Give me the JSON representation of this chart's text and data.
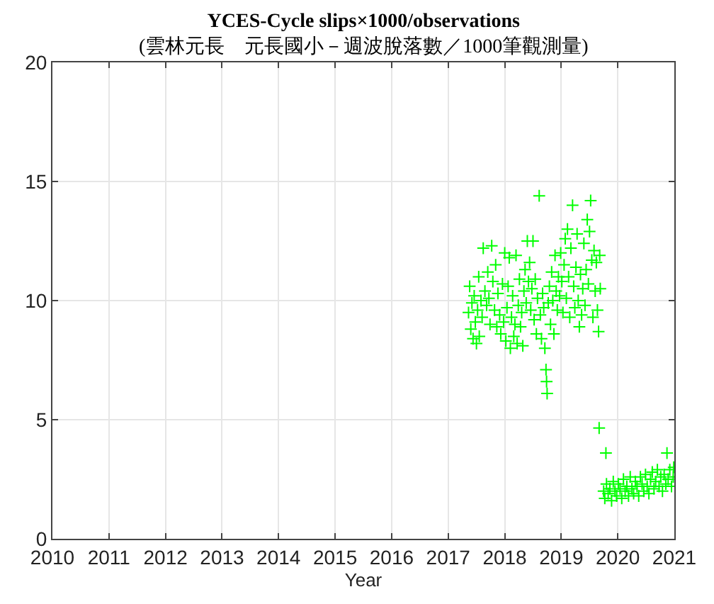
{
  "chart_data": {
    "type": "scatter",
    "title": "YCES-Cycle slips×1000/observations",
    "subtitle": "(雲林元長　元長國小－週波脫落數／1000筆觀測量)",
    "xlabel": "Year",
    "xlim": [
      2010,
      2021
    ],
    "xticks": [
      2010,
      2011,
      2012,
      2013,
      2014,
      2015,
      2016,
      2017,
      2018,
      2019,
      2020,
      2021
    ],
    "ylim": [
      0,
      20
    ],
    "yticks": [
      0,
      5,
      10,
      15,
      20
    ],
    "grid": true,
    "marker": "cross",
    "series": [
      {
        "color": "#00ff00",
        "x": [
          2017.36,
          2017.38,
          2017.4,
          2017.42,
          2017.44,
          2017.46,
          2017.48,
          2017.5,
          2017.52,
          2017.54,
          2017.55,
          2017.58,
          2017.6,
          2017.62,
          2017.65,
          2017.68,
          2017.7,
          2017.72,
          2017.74,
          2017.77,
          2017.79,
          2017.82,
          2017.84,
          2017.86,
          2017.88,
          2017.91,
          2017.93,
          2017.96,
          2017.98,
          2018.0,
          2018.02,
          2018.04,
          2018.06,
          2018.08,
          2018.1,
          2018.12,
          2018.14,
          2018.16,
          2018.18,
          2018.2,
          2018.22,
          2018.24,
          2018.26,
          2018.28,
          2018.3,
          2018.32,
          2018.34,
          2018.36,
          2018.38,
          2018.4,
          2018.42,
          2018.44,
          2018.46,
          2018.48,
          2018.5,
          2018.52,
          2018.54,
          2018.56,
          2018.58,
          2018.61,
          2018.63,
          2018.65,
          2018.67,
          2018.69,
          2018.71,
          2018.73,
          2018.74,
          2018.75,
          2018.77,
          2018.79,
          2018.81,
          2018.83,
          2018.85,
          2018.87,
          2018.89,
          2018.91,
          2018.93,
          2018.95,
          2018.97,
          2018.99,
          2019.01,
          2019.03,
          2019.05,
          2019.07,
          2019.09,
          2019.11,
          2019.13,
          2019.15,
          2019.17,
          2019.2,
          2019.22,
          2019.24,
          2019.26,
          2019.28,
          2019.3,
          2019.32,
          2019.34,
          2019.36,
          2019.38,
          2019.4,
          2019.42,
          2019.44,
          2019.46,
          2019.48,
          2019.5,
          2019.52,
          2019.54,
          2019.56,
          2019.58,
          2019.6,
          2019.62,
          2019.64,
          2019.66,
          2019.68,
          2019.69,
          2019.67,
          2019.79,
          2019.75,
          2019.77,
          2019.8,
          2019.83,
          2019.86,
          2019.89,
          2019.92,
          2019.95,
          2019.98,
          2020.01,
          2020.04,
          2020.07,
          2020.1,
          2020.13,
          2020.16,
          2020.19,
          2020.22,
          2020.25,
          2020.28,
          2020.31,
          2020.34,
          2020.37,
          2020.4,
          2020.43,
          2020.46,
          2020.49,
          2020.52,
          2020.55,
          2020.58,
          2020.61,
          2020.64,
          2020.67,
          2020.7,
          2020.73,
          2020.76,
          2020.79,
          2020.82,
          2020.85,
          2020.87,
          2020.89,
          2020.92,
          2020.95,
          2020.98,
          2020.99
        ],
        "values": [
          9.5,
          10.6,
          8.8,
          9.9,
          8.4,
          10.2,
          9.1,
          8.2,
          9.6,
          11.0,
          8.5,
          10.0,
          9.3,
          12.2,
          10.4,
          9.8,
          11.2,
          10.1,
          9.0,
          12.3,
          10.8,
          9.6,
          11.5,
          8.9,
          10.3,
          9.4,
          8.6,
          10.7,
          9.1,
          12.0,
          8.3,
          9.7,
          10.6,
          11.8,
          8.0,
          9.3,
          10.2,
          8.5,
          9.0,
          11.9,
          8.2,
          9.8,
          10.9,
          8.9,
          9.5,
          8.1,
          10.4,
          11.3,
          9.9,
          12.5,
          10.8,
          11.6,
          9.6,
          10.5,
          12.5,
          9.2,
          10.9,
          8.6,
          10.1,
          14.4,
          9.4,
          8.4,
          10.3,
          9.7,
          8.0,
          7.1,
          6.6,
          6.1,
          9.9,
          10.6,
          9.0,
          11.2,
          10.0,
          8.6,
          11.9,
          10.4,
          9.6,
          11.0,
          10.2,
          12.0,
          10.8,
          9.5,
          11.5,
          12.6,
          10.1,
          13.0,
          11.0,
          9.3,
          12.2,
          14.0,
          10.6,
          9.7,
          11.4,
          12.8,
          10.0,
          8.9,
          11.1,
          9.4,
          10.5,
          12.4,
          9.8,
          11.3,
          13.4,
          10.7,
          12.9,
          14.2,
          11.7,
          9.3,
          12.1,
          10.4,
          11.6,
          9.6,
          8.7,
          11.9,
          10.5,
          4.65,
          3.6,
          2.0,
          1.7,
          2.3,
          1.9,
          2.1,
          1.6,
          2.4,
          2.0,
          1.8,
          2.3,
          2.1,
          1.7,
          2.5,
          2.0,
          2.2,
          1.8,
          2.6,
          2.1,
          1.9,
          2.4,
          2.2,
          1.8,
          2.6,
          2.3,
          2.0,
          2.7,
          2.2,
          1.9,
          2.5,
          2.8,
          2.1,
          2.4,
          2.9,
          2.2,
          2.6,
          2.0,
          2.7,
          2.3,
          3.6,
          2.5,
          2.9,
          2.2,
          2.6,
          3.0
        ]
      }
    ]
  }
}
